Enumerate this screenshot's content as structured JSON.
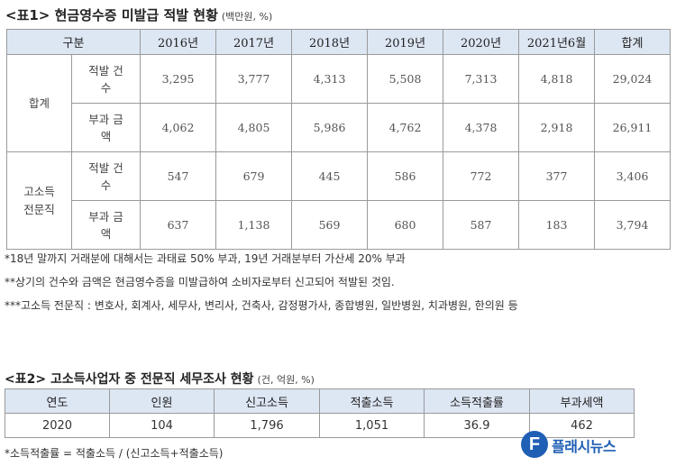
{
  "table1": {
    "title": "<표1> 현금영수증 미발급 적발 현황",
    "unit": "(백만원, %)",
    "headers": [
      "구분",
      "2016년",
      "2017년",
      "2018년",
      "2019년",
      "2020년",
      "2021년6월",
      "합계"
    ],
    "groups": [
      {
        "name_line1": "합계",
        "name_line2": "",
        "rows": [
          {
            "item_line1": "적발 건",
            "item_line2": "수",
            "values": [
              "3,295",
              "3,777",
              "4,313",
              "5,508",
              "7,313",
              "4,818",
              "29,024"
            ]
          },
          {
            "item_line1": "부과 금",
            "item_line2": "액",
            "values": [
              "4,062",
              "4,805",
              "5,986",
              "4,762",
              "4,378",
              "2,918",
              "26,911"
            ]
          }
        ]
      },
      {
        "name_line1": "고소득",
        "name_line2": "전문직",
        "rows": [
          {
            "item_line1": "적발 건",
            "item_line2": "수",
            "values": [
              "547",
              "679",
              "445",
              "586",
              "772",
              "377",
              "3,406"
            ]
          },
          {
            "item_line1": "부과 금",
            "item_line2": "액",
            "values": [
              "637",
              "1,138",
              "569",
              "680",
              "587",
              "183",
              "3,794"
            ]
          }
        ]
      }
    ],
    "notes": [
      "*18년 말까지 거래분에 대해서는 과태료 50% 부과, 19년 거래분부터 가산세 20% 부과",
      "**상기의 건수와 금액은 현금영수증을 미발급하여 소비자로부터 신고되어 적발된 것임.",
      "***고소득 전문직 : 변호사, 회계사, 세무사, 변리사, 건축사, 감정평가사, 종합병원, 일반병원, 치과병원, 한의원 등"
    ]
  },
  "table2": {
    "title": "<표2> 고소득사업자 중 전문직 세무조사 현황",
    "unit": "(건, 억원, %)",
    "headers": [
      "연도",
      "인원",
      "신고소득",
      "적출소득",
      "소득적출률",
      "부과세액"
    ],
    "row": [
      "2020",
      "104",
      "1,796",
      "1,051",
      "36.9",
      "462"
    ],
    "note": "*소득적출률 = 적출소득 / (신고소득+적출소득)"
  },
  "logo": {
    "text": "플래시뉴스",
    "accent": "#1f5fb4"
  }
}
